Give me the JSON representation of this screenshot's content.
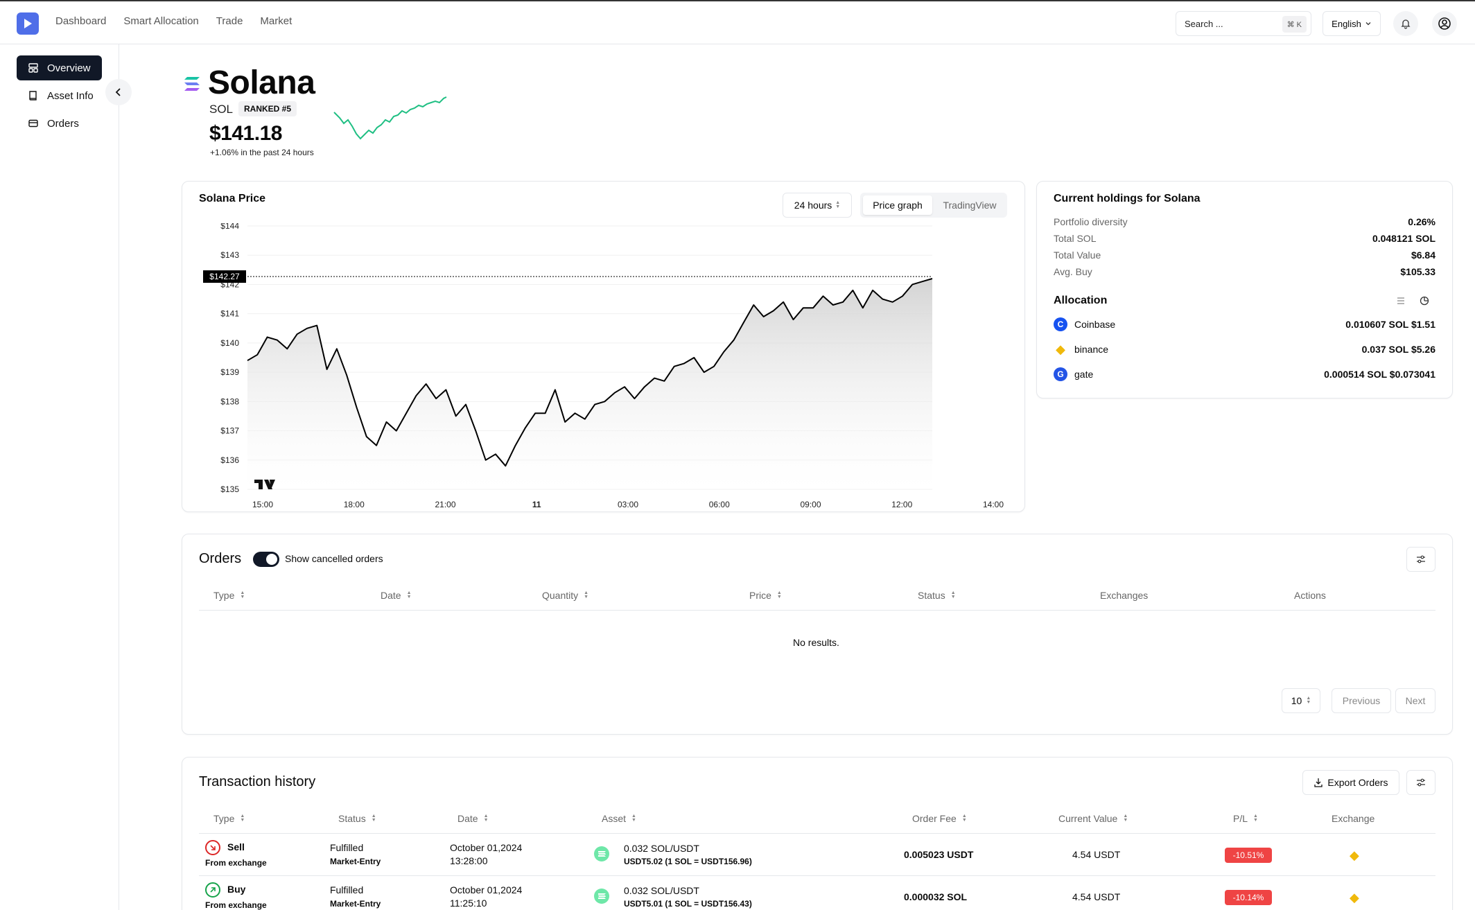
{
  "nav": {
    "items": [
      "Dashboard",
      "Smart Allocation",
      "Trade",
      "Market"
    ],
    "search_placeholder": "Search ...",
    "search_shortcut": "⌘ K",
    "language": "English"
  },
  "sidebar": {
    "items": [
      {
        "label": "Overview",
        "icon": "layout-icon"
      },
      {
        "label": "Asset Info",
        "icon": "book-icon"
      },
      {
        "label": "Orders",
        "icon": "card-icon"
      }
    ]
  },
  "asset": {
    "name": "Solana",
    "symbol": "SOL",
    "rank": "RANKED #5",
    "price": "$141.18",
    "change_text": "+1.06% in the past 24 hours"
  },
  "price_card": {
    "title": "Solana Price",
    "range": "24 hours",
    "tab_active": "Price graph",
    "tab_other": "TradingView",
    "current_label": "$142.27"
  },
  "chart_data": {
    "type": "area",
    "title": "Solana Price",
    "ylim": [
      135,
      144
    ],
    "y_ticks": [
      "$144",
      "$143",
      "$142",
      "$141",
      "$140",
      "$139",
      "$138",
      "$137",
      "$136",
      "$135"
    ],
    "x_ticks": [
      "15:00",
      "18:00",
      "21:00",
      "11",
      "03:00",
      "06:00",
      "09:00",
      "12:00",
      "14:00"
    ],
    "current_value": 142.27,
    "series": [
      {
        "name": "SOL",
        "values": [
          139.4,
          139.6,
          140.2,
          140.1,
          139.8,
          140.3,
          140.5,
          140.6,
          139.1,
          139.8,
          138.9,
          137.8,
          136.8,
          136.5,
          137.3,
          137.0,
          137.6,
          138.2,
          138.6,
          138.1,
          138.4,
          137.5,
          137.9,
          137.0,
          136.0,
          136.2,
          135.8,
          136.5,
          137.1,
          137.6,
          137.6,
          138.4,
          137.3,
          137.6,
          137.4,
          137.9,
          138.0,
          138.3,
          138.5,
          138.1,
          138.5,
          138.8,
          138.7,
          139.2,
          139.3,
          139.5,
          139.0,
          139.2,
          139.7,
          140.1,
          140.7,
          141.3,
          140.9,
          141.1,
          141.4,
          140.8,
          141.2,
          141.2,
          141.6,
          141.3,
          141.4,
          141.8,
          141.2,
          141.8,
          141.5,
          141.4,
          141.6,
          142.0,
          142.1,
          142.2
        ]
      }
    ]
  },
  "holdings": {
    "title": "Current holdings for Solana",
    "rows": [
      {
        "label": "Portfolio diversity",
        "value": "0.26%"
      },
      {
        "label": "Total SOL",
        "value": "0.048121 SOL"
      },
      {
        "label": "Total Value",
        "value": "$6.84"
      },
      {
        "label": "Avg. Buy",
        "value": "$105.33"
      }
    ],
    "allocation_title": "Allocation",
    "allocation": [
      {
        "name": "Coinbase",
        "value": "0.010607 SOL  $1.51",
        "color": "#1652f0",
        "glyph": "C"
      },
      {
        "name": "binance",
        "value": "0.037 SOL  $5.26",
        "color": "#f0b90b",
        "glyph": "◆"
      },
      {
        "name": "gate",
        "value": "0.000514 SOL  $0.073041",
        "color": "#2354e6",
        "glyph": "G"
      }
    ]
  },
  "orders": {
    "title": "Orders",
    "toggle_label": "Show cancelled orders",
    "columns": [
      "Type",
      "Date",
      "Quantity",
      "Price",
      "Status",
      "Exchanges",
      "Actions"
    ],
    "empty": "No results.",
    "page_size": "10",
    "prev": "Previous",
    "next": "Next"
  },
  "history": {
    "title": "Transaction history",
    "export_label": "Export Orders",
    "columns": [
      "Type",
      "Status",
      "Date",
      "Asset",
      "Order Fee",
      "Current Value",
      "P/L",
      "Exchange"
    ],
    "rows": [
      {
        "type": "Sell",
        "type_sub": "From exchange",
        "status": "Fulfilled",
        "status_sub": "Market-Entry",
        "date": "October 01,2024",
        "time": "13:28:00",
        "asset": "0.032 SOL/USDT",
        "asset_sub": "USDT5.02 (1 SOL = USDT156.96)",
        "fee": "0.005023 USDT",
        "value": "4.54 USDT",
        "pl": "-10.51%"
      },
      {
        "type": "Buy",
        "type_sub": "From exchange",
        "status": "Fulfilled",
        "status_sub": "Market-Entry",
        "date": "October 01,2024",
        "time": "11:25:10",
        "asset": "0.032 SOL/USDT",
        "asset_sub": "USDT5.01 (1 SOL = USDT156.43)",
        "fee": "0.000032 SOL",
        "value": "4.54 USDT",
        "pl": "-10.14%"
      }
    ]
  }
}
